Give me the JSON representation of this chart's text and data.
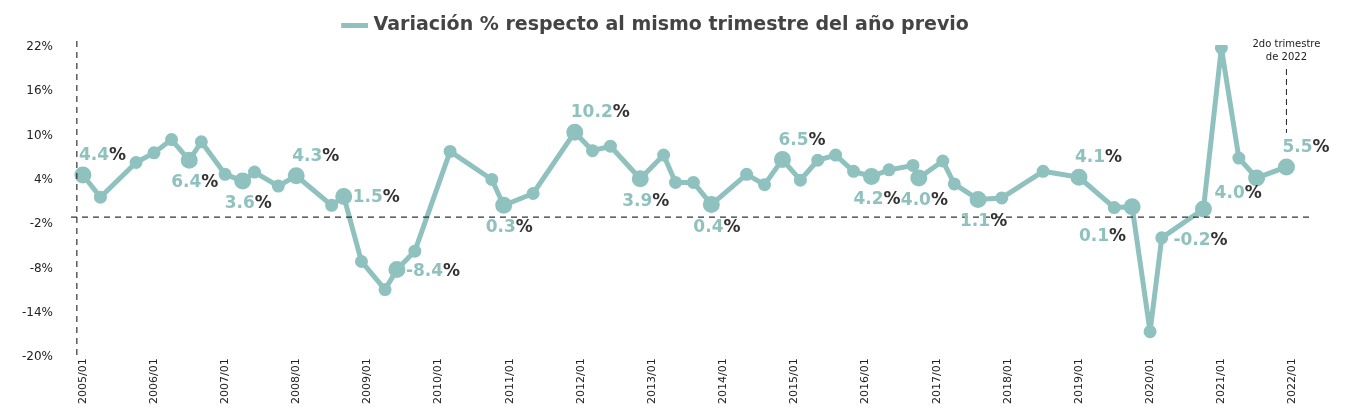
{
  "chart_data": {
    "type": "line",
    "legend": "top",
    "marker": "circle",
    "line_style": "solid",
    "x": [
      "2005-01",
      "2005-04",
      "2005-10",
      "2006-01",
      "2006-04",
      "2006-07",
      "2006-09",
      "2007-01",
      "2007-04",
      "2007-06",
      "2007-10",
      "2008-01",
      "2008-07",
      "2008-09",
      "2008-12",
      "2009-04",
      "2009-06",
      "2009-09",
      "2010-03",
      "2010-10",
      "2010-12",
      "2011-05",
      "2011-12",
      "2012-03",
      "2012-06",
      "2012-11",
      "2013-03",
      "2013-05",
      "2013-08",
      "2013-11",
      "2014-05",
      "2014-08",
      "2014-11",
      "2015-02",
      "2015-05",
      "2015-08",
      "2015-11",
      "2016-02",
      "2016-05",
      "2016-09",
      "2016-10",
      "2017-02",
      "2017-04",
      "2017-08",
      "2017-12",
      "2018-07",
      "2019-01",
      "2019-07",
      "2019-10",
      "2020-01",
      "2020-03",
      "2020-10",
      "2021-01",
      "2021-04",
      "2021-07",
      "2021-12"
    ],
    "series": [
      {
        "name": "Variación % respecto al mismo trimestre del año previo",
        "color": "#8fc1bf",
        "values": [
          4.4,
          1.4,
          6.1,
          7.4,
          9.2,
          6.4,
          8.9,
          4.5,
          3.6,
          4.8,
          2.9,
          4.3,
          0.3,
          1.5,
          -7.3,
          -11.1,
          -8.4,
          -5.9,
          7.6,
          3.8,
          0.3,
          1.9,
          10.2,
          7.7,
          8.3,
          3.9,
          7.1,
          3.4,
          3.4,
          0.4,
          4.5,
          3.1,
          6.5,
          3.7,
          6.4,
          7.1,
          4.9,
          4.2,
          5.1,
          5.7,
          4.0,
          6.3,
          3.2,
          1.1,
          1.3,
          4.9,
          4.1,
          0.0,
          0.1,
          -16.8,
          -4.1,
          -0.2,
          21.6,
          6.7,
          4.0,
          5.5
        ],
        "value_labels": [
          "4.4%",
          null,
          null,
          null,
          null,
          "6.4%",
          null,
          null,
          "3.6%",
          null,
          null,
          "4.3%",
          null,
          "1.5%",
          null,
          null,
          "-8.4%",
          null,
          null,
          null,
          "0.3%",
          null,
          "10.2%",
          null,
          null,
          "3.9%",
          null,
          null,
          null,
          "0.4%",
          null,
          null,
          "6.5%",
          null,
          null,
          null,
          null,
          "4.2%",
          null,
          null,
          "4.0%",
          null,
          null,
          "1.1%",
          null,
          null,
          "4.1%",
          null,
          "0.1%",
          null,
          null,
          "-0.2%",
          null,
          null,
          "4.0%",
          "5.5%"
        ]
      }
    ],
    "ylim": [
      -20,
      22
    ],
    "yticks": [
      {
        "value": 22,
        "label": "22%"
      },
      {
        "value": 16,
        "label": "16%"
      },
      {
        "value": 10,
        "label": "10%"
      },
      {
        "value": 4,
        "label": "4%"
      },
      {
        "value": -2,
        "label": "-2%"
      },
      {
        "value": -8,
        "label": "-8%"
      },
      {
        "value": -14,
        "label": "-14%"
      },
      {
        "value": -20,
        "label": "-20%"
      }
    ],
    "xlim": [
      "2004-11",
      "2022-04"
    ],
    "xticks": [
      {
        "value": "2005-01",
        "label": "2005/01"
      },
      {
        "value": "2006-01",
        "label": "2006/01"
      },
      {
        "value": "2007-01",
        "label": "2007/01"
      },
      {
        "value": "2008-01",
        "label": "2008/01"
      },
      {
        "value": "2009-01",
        "label": "2009/01"
      },
      {
        "value": "2010-01",
        "label": "2010/01"
      },
      {
        "value": "2011-01",
        "label": "2011/01"
      },
      {
        "value": "2012-01",
        "label": "2012/01"
      },
      {
        "value": "2013-01",
        "label": "2013/01"
      },
      {
        "value": "2014-01",
        "label": "2014/01"
      },
      {
        "value": "2015-01",
        "label": "2015/01"
      },
      {
        "value": "2016-01",
        "label": "2016/01"
      },
      {
        "value": "2017-01",
        "label": "2017/01"
      },
      {
        "value": "2018-01",
        "label": "2018/01"
      },
      {
        "value": "2019-01",
        "label": "2019/01"
      },
      {
        "value": "2020-01",
        "label": "2020/01"
      },
      {
        "value": "2021-01",
        "label": "2021/01"
      },
      {
        "value": "2022-01",
        "label": "2022/01"
      }
    ],
    "grid": false,
    "ref_lines": [
      {
        "axis": "y",
        "value": -1.3,
        "line_style": "dashed",
        "color": "#333333"
      },
      {
        "axis": "x",
        "value": "2004-12",
        "line_style": "dashed",
        "color": "#333333"
      }
    ],
    "annotations": [
      "2do trimestre de 2022"
    ]
  }
}
